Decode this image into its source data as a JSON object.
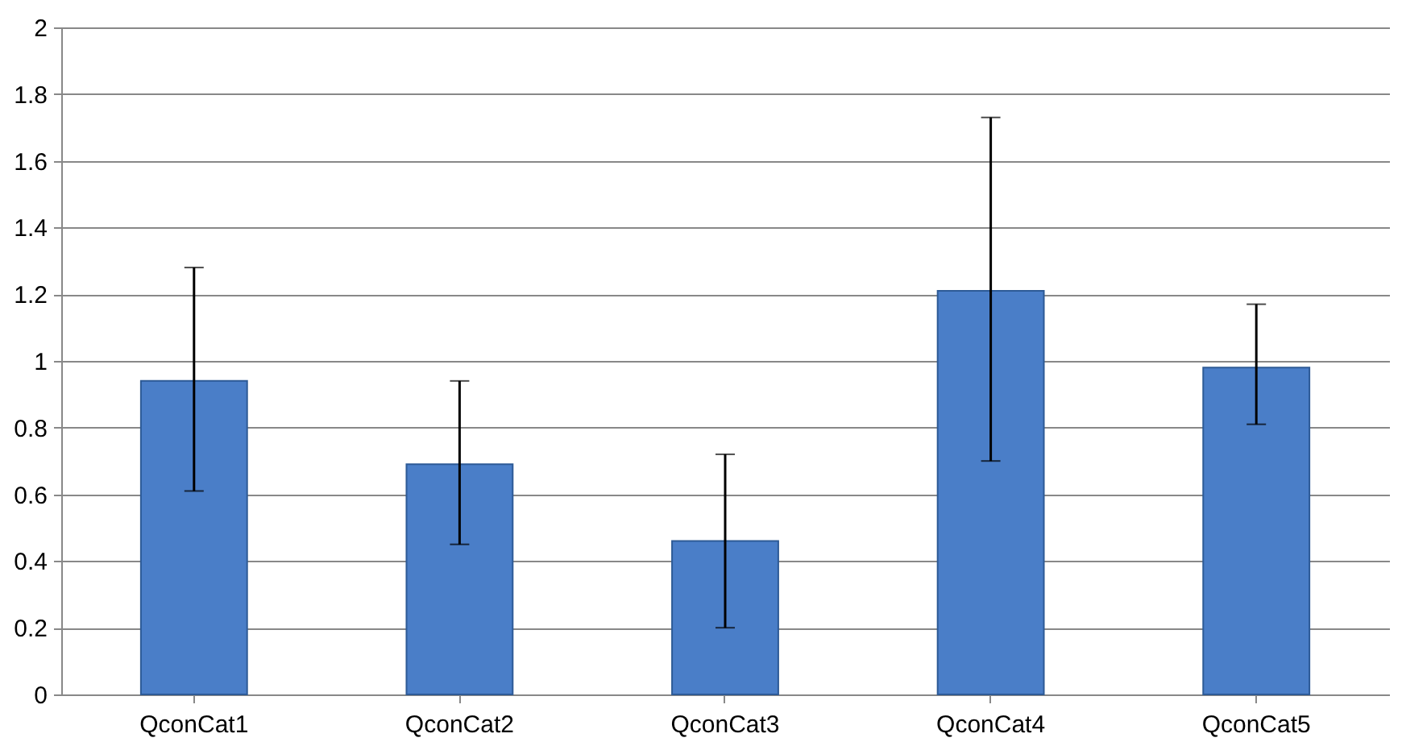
{
  "chart_data": {
    "type": "bar",
    "categories": [
      "QconCat1",
      "QconCat2",
      "QconCat3",
      "QconCat4",
      "QconCat5"
    ],
    "values": [
      0.94,
      0.69,
      0.46,
      1.21,
      0.98
    ],
    "color": "#4a7ec8",
    "errors": [
      [
        0.61,
        1.28
      ],
      [
        0.45,
        0.94
      ],
      [
        0.2,
        0.72
      ],
      [
        0.7,
        1.73
      ],
      [
        0.81,
        1.17
      ]
    ],
    "ylim": [
      0,
      2
    ],
    "yticks": [
      0,
      0.2,
      0.4,
      0.6,
      0.8,
      1,
      1.2,
      1.4,
      1.6,
      1.8,
      2
    ],
    "grid": "y"
  }
}
